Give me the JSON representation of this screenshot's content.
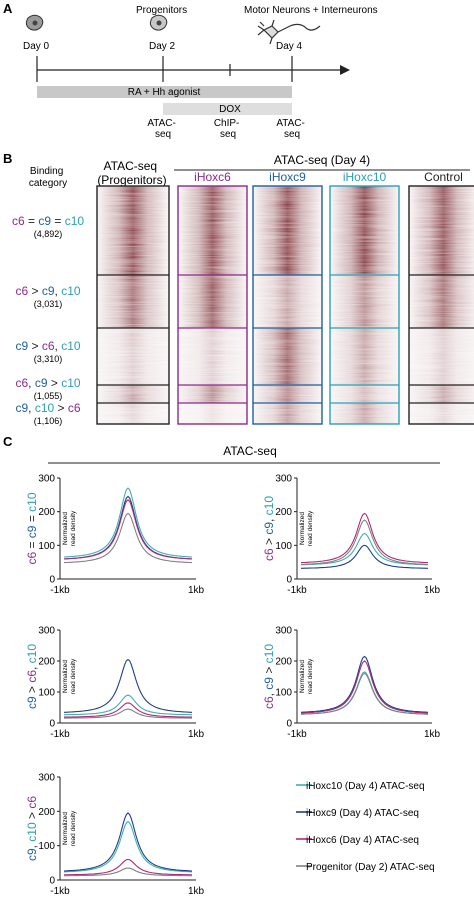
{
  "panel_a": {
    "letter": "A",
    "progenitors": "Progenitors",
    "motor": "Motor Neurons + Interneurons",
    "day0": "Day 0",
    "day2": "Day 2",
    "day4": "Day 4",
    "ra_bar": "RA + Hh agonist",
    "dox_bar": "DOX",
    "atac1": [
      "ATAC-",
      "seq"
    ],
    "chip": [
      "ChIP-",
      "seq"
    ],
    "atac2": [
      "ATAC-",
      "seq"
    ],
    "colors": {
      "ra": "#c8c8c8",
      "dox": "#dedede"
    }
  },
  "panel_b": {
    "letter": "B",
    "binding_category": [
      "Binding",
      "category"
    ],
    "progenitors_header": [
      "ATAC-seq",
      "(Progenitors)"
    ],
    "day4_header": "ATAC-seq (Day 4)",
    "columns": [
      {
        "label": "iHoxc6",
        "color": "#8b2a8b"
      },
      {
        "label": "iHoxc9",
        "color": "#1f5f9f"
      },
      {
        "label": "iHoxc10",
        "color": "#2aa0b8"
      },
      {
        "label": "Control",
        "color": "#222222"
      }
    ],
    "categories": [
      {
        "parts": [
          [
            "c6",
            "#8b2a8b"
          ],
          [
            " = ",
            "#222222"
          ],
          [
            "c9",
            "#1f5f9f"
          ],
          [
            " = ",
            "#222222"
          ],
          [
            "c10",
            "#2aa0b8"
          ]
        ],
        "count": "(4,892)"
      },
      {
        "parts": [
          [
            "c6",
            "#8b2a8b"
          ],
          [
            " > ",
            "#222222"
          ],
          [
            "c9",
            "#1f5f9f"
          ],
          [
            ", ",
            "#222222"
          ],
          [
            "c10",
            "#2aa0b8"
          ]
        ],
        "count": "(3,031)"
      },
      {
        "parts": [
          [
            "c9",
            "#1f5f9f"
          ],
          [
            " > ",
            "#222222"
          ],
          [
            "c6",
            "#8b2a8b"
          ],
          [
            ", ",
            "#222222"
          ],
          [
            "c10",
            "#2aa0b8"
          ]
        ],
        "count": "(3,310)"
      },
      {
        "parts": [
          [
            "c6",
            "#8b2a8b"
          ],
          [
            ", ",
            "#222222"
          ],
          [
            "c9",
            "#1f5f9f"
          ],
          [
            " > ",
            "#222222"
          ],
          [
            "c10",
            "#2aa0b8"
          ]
        ],
        "count": "(1,055)"
      },
      {
        "parts": [
          [
            "c9",
            "#1f5f9f"
          ],
          [
            ", ",
            "#222222"
          ],
          [
            "c10",
            "#2aa0b8"
          ],
          [
            " > ",
            "#222222"
          ],
          [
            "c6",
            "#8b2a8b"
          ]
        ],
        "count": "(1,106)"
      }
    ],
    "heat_color": "#7a2a30"
  },
  "panel_c": {
    "letter": "C",
    "title": "ATAC-seq",
    "ylabel": [
      "Normalized",
      "read density"
    ]
  },
  "legend": [
    {
      "label": "iHoxc10 (Day 4) ATAC-seq",
      "color": "#3fb0b0"
    },
    {
      "label": "iHoxc9 (Day 4) ATAC-seq",
      "color": "#1f3f8f"
    },
    {
      "label": "iHoxc6 (Day 4) ATAC-seq",
      "color": "#b02a7a"
    },
    {
      "label": "Progenitor (Day 2) ATAC-seq",
      "color": "#808080"
    }
  ],
  "chart_data": [
    {
      "type": "line",
      "ylabel_parts": [
        [
          "c6",
          "#8b2a8b"
        ],
        [
          " = ",
          "#222222"
        ],
        [
          "c9",
          "#1f5f9f"
        ],
        [
          " = ",
          "#222222"
        ],
        [
          "c10",
          "#2aa0b8"
        ]
      ],
      "xlabel_left": "-1kb",
      "xlabel_right": "1kb",
      "ylim": [
        0,
        300
      ],
      "yticks": [
        0,
        100,
        200,
        300
      ],
      "series": [
        {
          "peak": 270,
          "base": 60,
          "color": "#3fb0b0"
        },
        {
          "peak": 245,
          "base": 55,
          "color": "#1f3f8f"
        },
        {
          "peak": 235,
          "base": 55,
          "color": "#b02a7a"
        },
        {
          "peak": 195,
          "base": 45,
          "color": "#808080"
        }
      ]
    },
    {
      "type": "line",
      "ylabel_parts": [
        [
          "c6",
          "#8b2a8b"
        ],
        [
          " > ",
          "#222222"
        ],
        [
          "c9",
          "#1f5f9f"
        ],
        [
          ", ",
          "#222222"
        ],
        [
          "c10",
          "#2aa0b8"
        ]
      ],
      "xlabel_left": "-1kb",
      "xlabel_right": "1kb",
      "ylim": [
        0,
        300
      ],
      "yticks": [
        0,
        100,
        200,
        300
      ],
      "series": [
        {
          "peak": 135,
          "base": 40,
          "color": "#3fb0b0"
        },
        {
          "peak": 100,
          "base": 30,
          "color": "#1f3f8f"
        },
        {
          "peak": 195,
          "base": 45,
          "color": "#b02a7a"
        },
        {
          "peak": 175,
          "base": 40,
          "color": "#808080"
        }
      ]
    },
    {
      "type": "line",
      "ylabel_parts": [
        [
          "c9",
          "#1f5f9f"
        ],
        [
          " > ",
          "#222222"
        ],
        [
          "c6",
          "#8b2a8b"
        ],
        [
          ", ",
          "#222222"
        ],
        [
          "c10",
          "#2aa0b8"
        ]
      ],
      "xlabel_left": "-1kb",
      "xlabel_right": "1kb",
      "ylim": [
        0,
        300
      ],
      "yticks": [
        0,
        100,
        200,
        300
      ],
      "series": [
        {
          "peak": 90,
          "base": 25,
          "color": "#3fb0b0"
        },
        {
          "peak": 205,
          "base": 30,
          "color": "#1f3f8f"
        },
        {
          "peak": 65,
          "base": 18,
          "color": "#b02a7a"
        },
        {
          "peak": 45,
          "base": 15,
          "color": "#808080"
        }
      ]
    },
    {
      "type": "line",
      "ylabel_parts": [
        [
          "c6",
          "#8b2a8b"
        ],
        [
          ", ",
          "#222222"
        ],
        [
          "c9",
          "#1f5f9f"
        ],
        [
          " > ",
          "#222222"
        ],
        [
          "c10",
          "#2aa0b8"
        ]
      ],
      "xlabel_left": "-1kb",
      "xlabel_right": "1kb",
      "ylim": [
        0,
        300
      ],
      "yticks": [
        0,
        100,
        200,
        300
      ],
      "series": [
        {
          "peak": 165,
          "base": 25,
          "color": "#3fb0b0"
        },
        {
          "peak": 215,
          "base": 30,
          "color": "#1f3f8f"
        },
        {
          "peak": 200,
          "base": 28,
          "color": "#b02a7a"
        },
        {
          "peak": 160,
          "base": 25,
          "color": "#808080"
        }
      ]
    },
    {
      "type": "line",
      "ylabel_parts": [
        [
          "c9",
          "#1f5f9f"
        ],
        [
          ", ",
          "#222222"
        ],
        [
          "c10",
          "#2aa0b8"
        ],
        [
          " > ",
          "#222222"
        ],
        [
          "c6",
          "#8b2a8b"
        ]
      ],
      "xlabel_left": "-1kb",
      "xlabel_right": "1kb",
      "ylim": [
        0,
        300
      ],
      "yticks": [
        0,
        100,
        200,
        300
      ],
      "series": [
        {
          "peak": 170,
          "base": 20,
          "color": "#3fb0b0"
        },
        {
          "peak": 195,
          "base": 22,
          "color": "#1f3f8f"
        },
        {
          "peak": 60,
          "base": 14,
          "color": "#b02a7a"
        },
        {
          "peak": 35,
          "base": 12,
          "color": "#808080"
        }
      ]
    }
  ]
}
